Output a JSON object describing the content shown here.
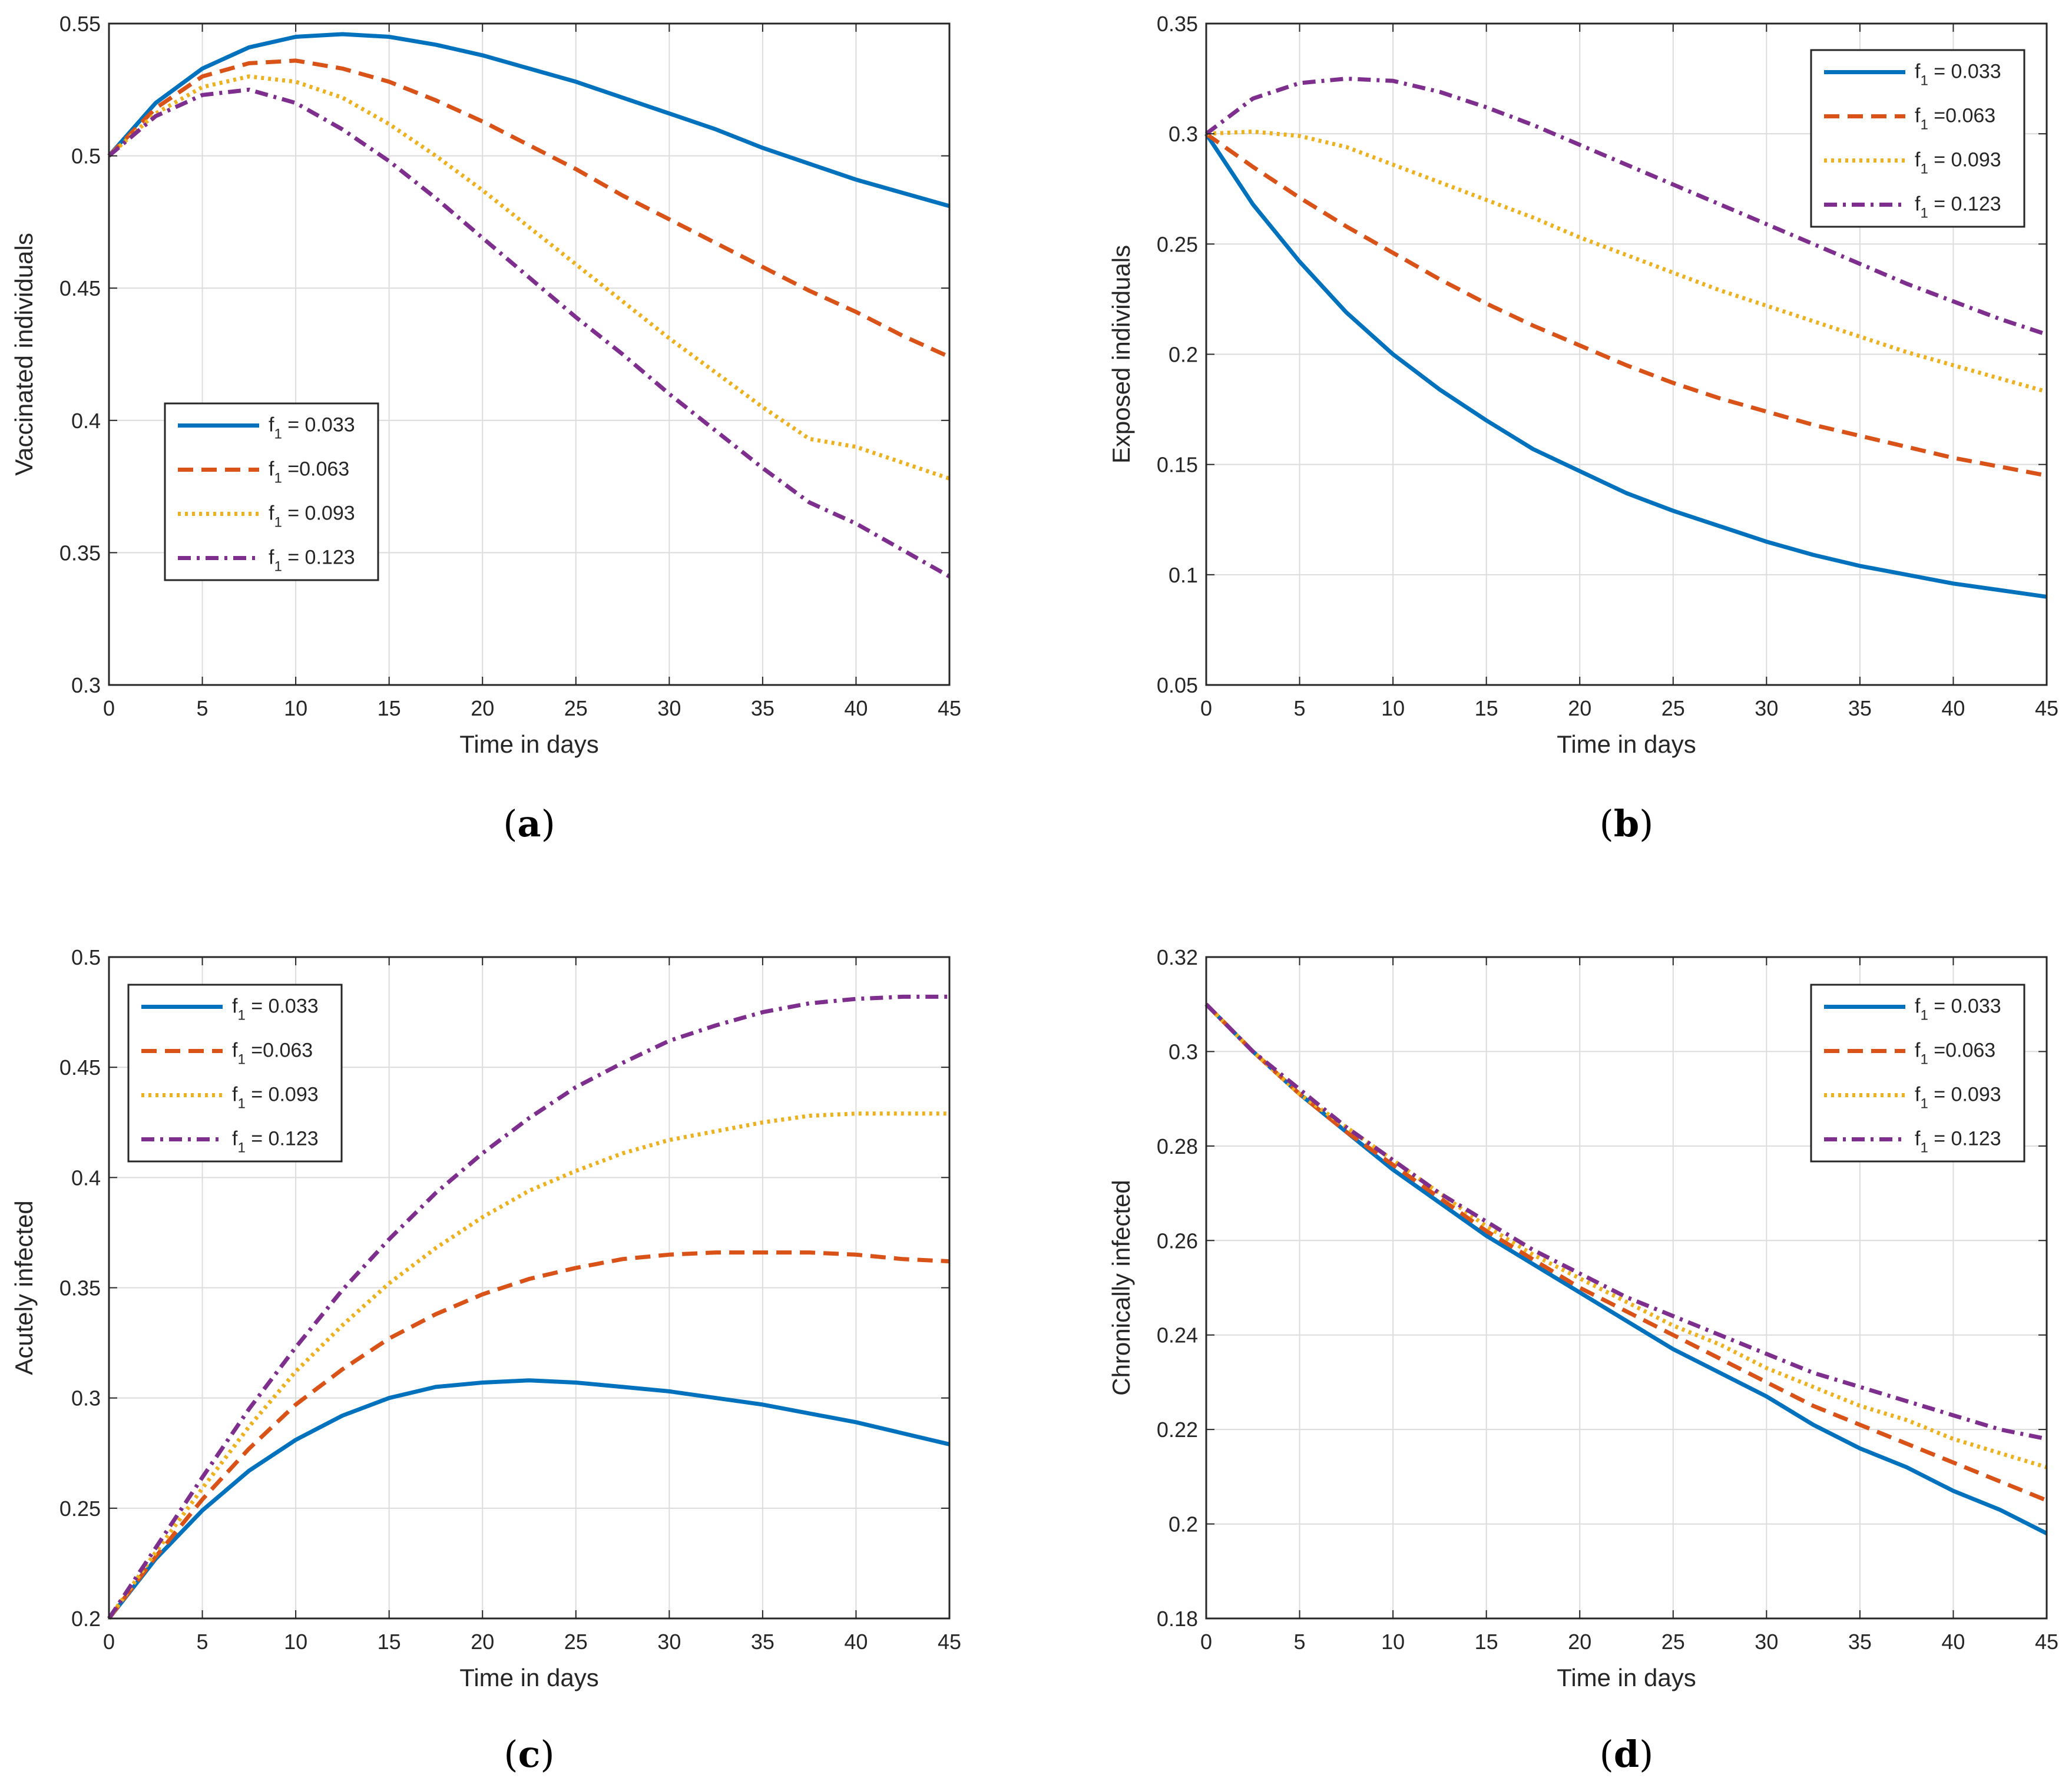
{
  "colors": {
    "series": [
      "#0072BD",
      "#D95319",
      "#EDB120",
      "#7E2F8E"
    ],
    "grid": "#dcdcdc",
    "axis": "#262626"
  },
  "chart_data": [
    {
      "type": "line",
      "caption": "(a)",
      "caption_letter": "a",
      "xlabel": "Time in days",
      "ylabel": "Vaccinated individuals",
      "xlim": [
        0,
        45
      ],
      "ylim": [
        0.3,
        0.55
      ],
      "xticks": [
        0,
        5,
        10,
        15,
        20,
        25,
        30,
        35,
        40,
        45
      ],
      "xtick_labels": [
        "0",
        "5",
        "10",
        "15",
        "20",
        "25",
        "30",
        "35",
        "40",
        "45"
      ],
      "yticks": [
        0.3,
        0.35,
        0.4,
        0.45,
        0.5,
        0.55
      ],
      "ytick_labels": [
        "0.3",
        "0.35",
        "0.4",
        "0.45",
        "0.5",
        "0.55"
      ],
      "grid": true,
      "legend_position": "middle-left",
      "x": [
        0,
        2.5,
        5,
        7.5,
        10,
        12.5,
        15,
        17.5,
        20,
        22.5,
        25,
        27.5,
        30,
        32.5,
        35,
        37.5,
        40,
        42.5,
        45
      ],
      "series": [
        {
          "name": "f1 = 0.033",
          "legend_main": "f",
          "legend_sub": "1",
          "legend_value": "= 0.033",
          "style": "solid",
          "values": [
            0.5,
            0.52,
            0.533,
            0.541,
            0.545,
            0.546,
            0.545,
            0.542,
            0.538,
            0.533,
            0.528,
            0.522,
            0.516,
            0.51,
            0.503,
            0.497,
            0.491,
            0.486,
            0.481
          ]
        },
        {
          "name": "f1 =0.063",
          "legend_main": "f",
          "legend_sub": "1",
          "legend_value": "=0.063",
          "style": "dashed",
          "values": [
            0.5,
            0.518,
            0.53,
            0.535,
            0.536,
            0.533,
            0.528,
            0.521,
            0.513,
            0.504,
            0.495,
            0.485,
            0.476,
            0.467,
            0.458,
            0.449,
            0.441,
            0.432,
            0.424
          ]
        },
        {
          "name": "f1 = 0.093",
          "legend_main": "f",
          "legend_sub": "1",
          "legend_value": "= 0.093",
          "style": "dotted",
          "values": [
            0.5,
            0.516,
            0.526,
            0.53,
            0.528,
            0.522,
            0.512,
            0.5,
            0.487,
            0.473,
            0.459,
            0.445,
            0.431,
            0.418,
            0.405,
            0.393,
            0.39,
            0.384,
            0.378
          ]
        },
        {
          "name": "f1 = 0.123",
          "legend_main": "f",
          "legend_sub": "1",
          "legend_value": "= 0.123",
          "style": "dashdot",
          "values": [
            0.5,
            0.515,
            0.523,
            0.525,
            0.52,
            0.51,
            0.498,
            0.484,
            0.469,
            0.454,
            0.439,
            0.425,
            0.41,
            0.396,
            0.382,
            0.369,
            0.361,
            0.351,
            0.341
          ]
        }
      ]
    },
    {
      "type": "line",
      "caption": "(b)",
      "caption_letter": "b",
      "xlabel": "Time in days",
      "ylabel": "Exposed individuals",
      "xlim": [
        0,
        45
      ],
      "ylim": [
        0.05,
        0.35
      ],
      "xticks": [
        0,
        5,
        10,
        15,
        20,
        25,
        30,
        35,
        40,
        45
      ],
      "xtick_labels": [
        "0",
        "5",
        "10",
        "15",
        "20",
        "25",
        "30",
        "35",
        "40",
        "45"
      ],
      "yticks": [
        0.05,
        0.1,
        0.15,
        0.2,
        0.25,
        0.3,
        0.35
      ],
      "ytick_labels": [
        "0.05",
        "0.1",
        "0.15",
        "0.2",
        "0.25",
        "0.3",
        "0.35"
      ],
      "grid": true,
      "legend_position": "top-right",
      "x": [
        0,
        2.5,
        5,
        7.5,
        10,
        12.5,
        15,
        17.5,
        20,
        22.5,
        25,
        27.5,
        30,
        32.5,
        35,
        37.5,
        40,
        42.5,
        45
      ],
      "series": [
        {
          "name": "f1 = 0.033",
          "legend_main": "f",
          "legend_sub": "1",
          "legend_value": "= 0.033",
          "style": "solid",
          "values": [
            0.3,
            0.268,
            0.242,
            0.219,
            0.2,
            0.184,
            0.17,
            0.157,
            0.147,
            0.137,
            0.129,
            0.122,
            0.115,
            0.109,
            0.104,
            0.1,
            0.096,
            0.093,
            0.09
          ]
        },
        {
          "name": "f1 =0.063",
          "legend_main": "f",
          "legend_sub": "1",
          "legend_value": "=0.063",
          "style": "dashed",
          "values": [
            0.3,
            0.285,
            0.271,
            0.258,
            0.246,
            0.234,
            0.223,
            0.213,
            0.204,
            0.195,
            0.187,
            0.18,
            0.174,
            0.168,
            0.163,
            0.158,
            0.153,
            0.149,
            0.145
          ]
        },
        {
          "name": "f1 = 0.093",
          "legend_main": "f",
          "legend_sub": "1",
          "legend_value": "= 0.093",
          "style": "dotted",
          "values": [
            0.3,
            0.301,
            0.299,
            0.294,
            0.286,
            0.278,
            0.27,
            0.262,
            0.253,
            0.245,
            0.237,
            0.229,
            0.222,
            0.215,
            0.208,
            0.201,
            0.195,
            0.189,
            0.183
          ]
        },
        {
          "name": "f1 = 0.123",
          "legend_main": "f",
          "legend_sub": "1",
          "legend_value": "= 0.123",
          "style": "dashdot",
          "values": [
            0.3,
            0.316,
            0.323,
            0.325,
            0.324,
            0.319,
            0.312,
            0.304,
            0.295,
            0.286,
            0.277,
            0.268,
            0.259,
            0.25,
            0.241,
            0.232,
            0.224,
            0.216,
            0.209
          ]
        }
      ]
    },
    {
      "type": "line",
      "caption": "(c)",
      "caption_letter": "c",
      "xlabel": "Time in days",
      "ylabel": "Acutely infected",
      "xlim": [
        0,
        45
      ],
      "ylim": [
        0.2,
        0.5
      ],
      "xticks": [
        0,
        5,
        10,
        15,
        20,
        25,
        30,
        35,
        40,
        45
      ],
      "xtick_labels": [
        "0",
        "5",
        "10",
        "15",
        "20",
        "25",
        "30",
        "35",
        "40",
        "45"
      ],
      "yticks": [
        0.2,
        0.25,
        0.3,
        0.35,
        0.4,
        0.45,
        0.5
      ],
      "ytick_labels": [
        "0.2",
        "0.25",
        "0.3",
        "0.35",
        "0.4",
        "0.45",
        "0.5"
      ],
      "grid": true,
      "legend_position": "top-left",
      "x": [
        0,
        2.5,
        5,
        7.5,
        10,
        12.5,
        15,
        17.5,
        20,
        22.5,
        25,
        27.5,
        30,
        32.5,
        35,
        37.5,
        40,
        42.5,
        45
      ],
      "series": [
        {
          "name": "f1 = 0.033",
          "legend_main": "f",
          "legend_sub": "1",
          "legend_value": "= 0.033",
          "style": "solid",
          "values": [
            0.2,
            0.227,
            0.249,
            0.267,
            0.281,
            0.292,
            0.3,
            0.305,
            0.307,
            0.308,
            0.307,
            0.305,
            0.303,
            0.3,
            0.297,
            0.293,
            0.289,
            0.284,
            0.279
          ]
        },
        {
          "name": "f1 =0.063",
          "legend_main": "f",
          "legend_sub": "1",
          "legend_value": "=0.063",
          "style": "dashed",
          "values": [
            0.2,
            0.228,
            0.254,
            0.277,
            0.297,
            0.313,
            0.327,
            0.338,
            0.347,
            0.354,
            0.359,
            0.363,
            0.365,
            0.366,
            0.366,
            0.366,
            0.365,
            0.363,
            0.362
          ]
        },
        {
          "name": "f1 = 0.093",
          "legend_main": "f",
          "legend_sub": "1",
          "legend_value": "= 0.093",
          "style": "dotted",
          "values": [
            0.2,
            0.23,
            0.259,
            0.287,
            0.312,
            0.333,
            0.352,
            0.368,
            0.382,
            0.394,
            0.403,
            0.411,
            0.417,
            0.421,
            0.425,
            0.428,
            0.429,
            0.429,
            0.429
          ]
        },
        {
          "name": "f1 = 0.123",
          "legend_main": "f",
          "legend_sub": "1",
          "legend_value": "= 0.123",
          "style": "dashdot",
          "values": [
            0.2,
            0.232,
            0.264,
            0.295,
            0.323,
            0.349,
            0.372,
            0.393,
            0.411,
            0.427,
            0.441,
            0.452,
            0.462,
            0.469,
            0.475,
            0.479,
            0.481,
            0.482,
            0.482
          ]
        }
      ]
    },
    {
      "type": "line",
      "caption": "(d)",
      "caption_letter": "d",
      "xlabel": "Time in days",
      "ylabel": "Chronically infected",
      "xlim": [
        0,
        45
      ],
      "ylim": [
        0.18,
        0.32
      ],
      "xticks": [
        0,
        5,
        10,
        15,
        20,
        25,
        30,
        35,
        40,
        45
      ],
      "xtick_labels": [
        "0",
        "5",
        "10",
        "15",
        "20",
        "25",
        "30",
        "35",
        "40",
        "45"
      ],
      "yticks": [
        0.18,
        0.2,
        0.22,
        0.24,
        0.26,
        0.28,
        0.3,
        0.32
      ],
      "ytick_labels": [
        "0.18",
        "0.2",
        "0.22",
        "0.24",
        "0.26",
        "0.28",
        "0.3",
        "0.32"
      ],
      "grid": true,
      "legend_position": "top-right",
      "x": [
        0,
        2.5,
        5,
        7.5,
        10,
        12.5,
        15,
        17.5,
        20,
        22.5,
        25,
        27.5,
        30,
        32.5,
        35,
        37.5,
        40,
        42.5,
        45
      ],
      "series": [
        {
          "name": "f1 = 0.033",
          "legend_main": "f",
          "legend_sub": "1",
          "legend_value": "= 0.033",
          "style": "solid",
          "values": [
            0.31,
            0.3,
            0.291,
            0.283,
            0.275,
            0.268,
            0.261,
            0.255,
            0.249,
            0.243,
            0.237,
            0.232,
            0.227,
            0.221,
            0.216,
            0.212,
            0.207,
            0.203,
            0.198
          ]
        },
        {
          "name": "f1 =0.063",
          "legend_main": "f",
          "legend_sub": "1",
          "legend_value": "=0.063",
          "style": "dashed",
          "values": [
            0.31,
            0.3,
            0.291,
            0.283,
            0.276,
            0.269,
            0.262,
            0.256,
            0.25,
            0.245,
            0.24,
            0.235,
            0.23,
            0.225,
            0.221,
            0.217,
            0.213,
            0.209,
            0.205
          ]
        },
        {
          "name": "f1 = 0.093",
          "legend_main": "f",
          "legend_sub": "1",
          "legend_value": "= 0.093",
          "style": "dotted",
          "values": [
            0.31,
            0.3,
            0.291,
            0.284,
            0.277,
            0.27,
            0.263,
            0.257,
            0.252,
            0.247,
            0.242,
            0.238,
            0.233,
            0.229,
            0.225,
            0.222,
            0.218,
            0.215,
            0.212
          ]
        },
        {
          "name": "f1 = 0.123",
          "legend_main": "f",
          "legend_sub": "1",
          "legend_value": "= 0.123",
          "style": "dashdot",
          "values": [
            0.31,
            0.3,
            0.292,
            0.284,
            0.277,
            0.27,
            0.264,
            0.258,
            0.253,
            0.248,
            0.244,
            0.24,
            0.236,
            0.232,
            0.229,
            0.226,
            0.223,
            0.22,
            0.218
          ]
        }
      ]
    }
  ]
}
